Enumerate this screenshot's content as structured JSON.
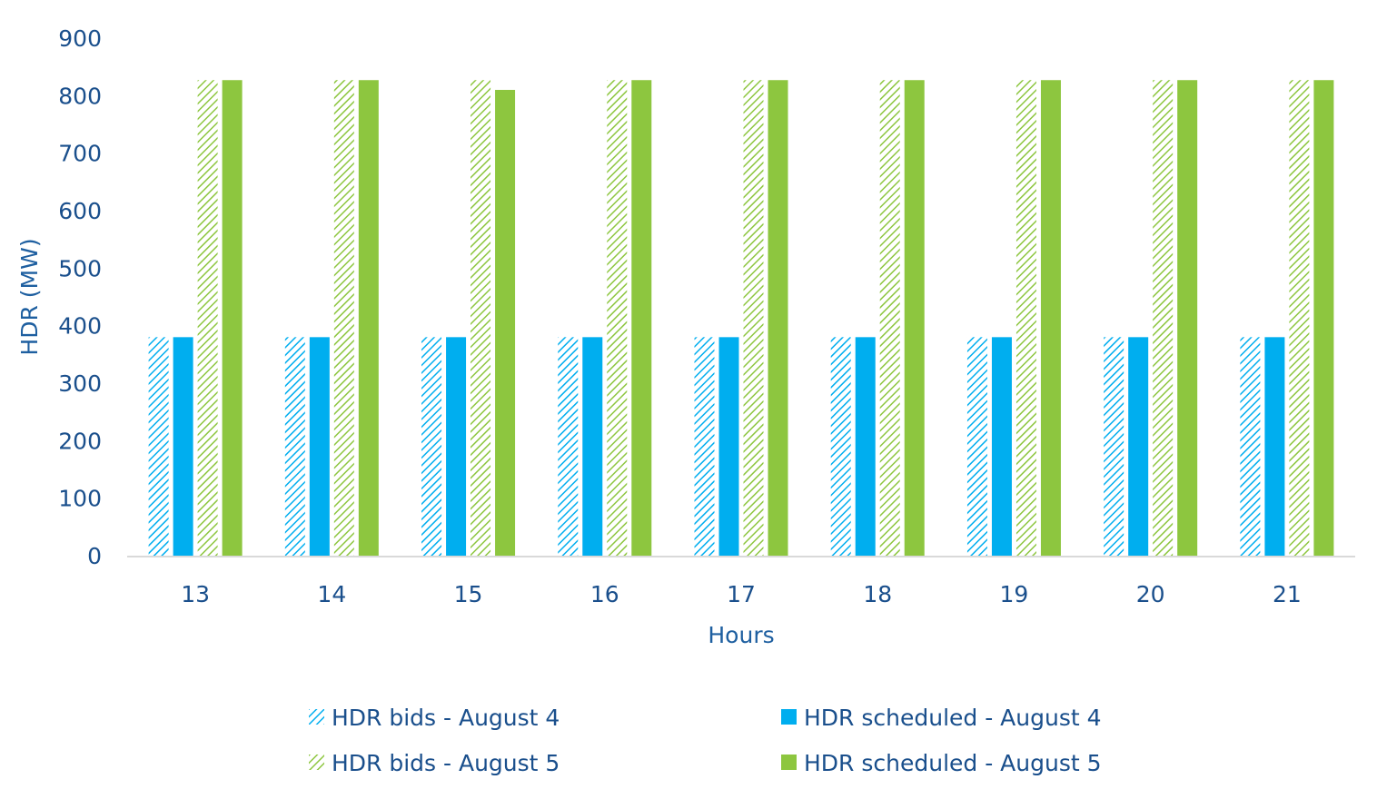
{
  "chart_data": {
    "type": "bar",
    "xlabel": "Hours",
    "ylabel": "HDR (MW)",
    "ylim": [
      0,
      900
    ],
    "yticks": [
      "0",
      "100",
      "200",
      "300",
      "400",
      "500",
      "600",
      "700",
      "800",
      "900"
    ],
    "categories": [
      "13",
      "14",
      "15",
      "16",
      "17",
      "18",
      "19",
      "20",
      "21"
    ],
    "grid": false,
    "legend_position": "bottom",
    "series": [
      {
        "name": "HDR bids - August 4",
        "color": "#00aeef",
        "pattern": "hatched",
        "values": [
          380,
          380,
          380,
          380,
          380,
          380,
          380,
          380,
          380
        ]
      },
      {
        "name": "HDR scheduled - August 4",
        "color": "#00aeef",
        "pattern": "solid",
        "values": [
          380,
          380,
          380,
          380,
          380,
          380,
          380,
          380,
          380
        ]
      },
      {
        "name": "HDR bids - August 5",
        "color": "#8dc63f",
        "pattern": "hatched",
        "values": [
          827,
          827,
          827,
          827,
          827,
          827,
          827,
          827,
          827
        ]
      },
      {
        "name": "HDR scheduled - August 5",
        "color": "#8dc63f",
        "pattern": "solid",
        "values": [
          827,
          827,
          810,
          827,
          827,
          827,
          827,
          827,
          827
        ]
      }
    ]
  }
}
